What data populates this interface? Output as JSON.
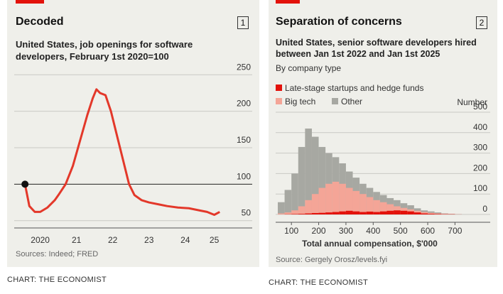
{
  "chart_data": [
    {
      "type": "line",
      "title": "Decoded",
      "number": "1",
      "subtitle": "United States, job openings for software developers, February 1st 2020=100",
      "source": "Sources: Indeed; FRED",
      "credit": "CHART: THE ECONOMIST",
      "x": [
        2020.08,
        2020.2,
        2020.35,
        2020.5,
        2020.7,
        2020.9,
        2021.0,
        2021.2,
        2021.4,
        2021.6,
        2021.8,
        2021.95,
        2022.05,
        2022.15,
        2022.3,
        2022.45,
        2022.6,
        2022.8,
        2022.95,
        2023.1,
        2023.3,
        2023.5,
        2023.8,
        2024.0,
        2024.3,
        2024.6,
        2024.9,
        2025.1,
        2025.3,
        2025.45
      ],
      "series": [
        {
          "name": "Job openings",
          "color": "#e3382a",
          "values": [
            100,
            70,
            62,
            62,
            68,
            78,
            85,
            100,
            125,
            160,
            195,
            218,
            230,
            225,
            222,
            200,
            170,
            130,
            100,
            85,
            78,
            75,
            72,
            70,
            68,
            67,
            64,
            62,
            58,
            62
          ]
        }
      ],
      "xlim": [
        2019.9,
        2025.7
      ],
      "xticks": [
        {
          "value": 2020.5,
          "label": "2020"
        },
        {
          "value": 2021.5,
          "label": "21"
        },
        {
          "value": 2022.5,
          "label": "22"
        },
        {
          "value": 2023.5,
          "label": "23"
        },
        {
          "value": 2024.5,
          "label": "24"
        },
        {
          "value": 2025.3,
          "label": "25"
        }
      ],
      "ylim": [
        40,
        260
      ],
      "yticks": [
        50,
        100,
        150,
        200,
        250
      ],
      "baseline": 100,
      "grid": true
    },
    {
      "type": "histogram",
      "title": "Separation of concerns",
      "number": "2",
      "subtitle": "United States, senior software developers hired between Jan 1st 2022 and Jan 1st 2025",
      "note": "By company type",
      "y_label": "Number",
      "x_label": "Total annual compensation, $'000",
      "source": "Source: Gergely Orosz/levels.fyi",
      "credit": "CHART: THE ECONOMIST",
      "bins": [
        50,
        75,
        100,
        125,
        150,
        175,
        200,
        225,
        250,
        275,
        300,
        325,
        350,
        375,
        400,
        425,
        450,
        475,
        500,
        525,
        550,
        575,
        600,
        625,
        650,
        675,
        700,
        725
      ],
      "series": [
        {
          "name": "Late-stage startups and hedge funds",
          "color": "#e3120b",
          "values": [
            0,
            1,
            2,
            3,
            5,
            7,
            8,
            10,
            12,
            15,
            18,
            15,
            12,
            14,
            12,
            15,
            18,
            20,
            18,
            15,
            10,
            5,
            3,
            2,
            1,
            1,
            0
          ]
        },
        {
          "name": "Big tech",
          "color": "#f4a597",
          "values": [
            5,
            10,
            20,
            40,
            70,
            100,
            130,
            150,
            160,
            150,
            130,
            115,
            100,
            85,
            70,
            60,
            50,
            40,
            32,
            25,
            18,
            12,
            8,
            5,
            3,
            2,
            1
          ]
        },
        {
          "name": "Other",
          "color": "#a7a8a2",
          "values": [
            60,
            120,
            200,
            330,
            420,
            380,
            330,
            300,
            280,
            250,
            210,
            180,
            150,
            130,
            110,
            95,
            80,
            70,
            55,
            45,
            30,
            20,
            15,
            10,
            5,
            3,
            2
          ]
        }
      ],
      "xlim": [
        50,
        725
      ],
      "xticks": [
        100,
        200,
        300,
        400,
        500,
        600,
        700
      ],
      "ylim": [
        0,
        500
      ],
      "yticks": [
        0,
        100,
        200,
        300,
        400,
        500
      ],
      "grid": true
    }
  ]
}
